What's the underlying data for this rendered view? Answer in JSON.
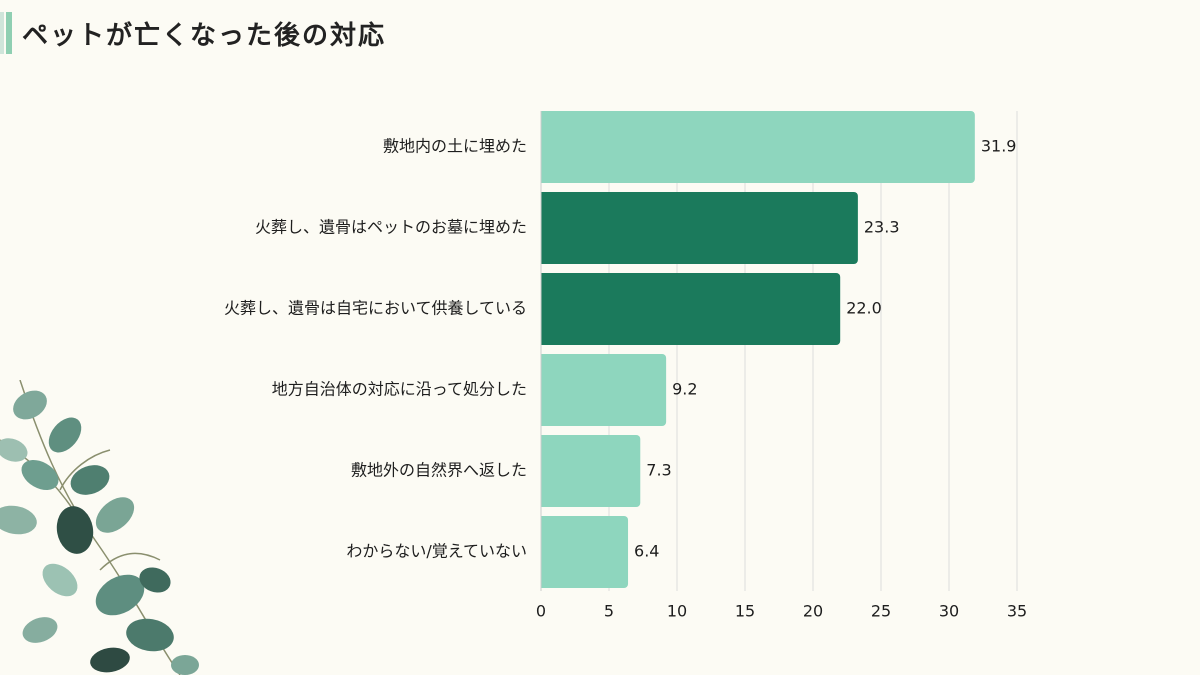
{
  "page": {
    "title": "ペットが亡くなった後の対応"
  },
  "colors": {
    "background": "#FCFBF4",
    "bar_light": "#8ED6BE",
    "bar_dark": "#1B7A5C",
    "grid": "#DDDDDD",
    "accent": "#8FCFB2"
  },
  "chart_data": {
    "type": "bar",
    "orientation": "horizontal",
    "title": "",
    "xlabel": "",
    "ylabel": "",
    "categories": [
      "敷地内の土に埋めた",
      "火葬し、遺骨はペットのお墓に埋めた",
      "火葬し、遺骨は自宅において供養している",
      "地方自治体の対応に沿って処分した",
      "敷地外の自然界へ返した",
      "わからない/覚えていない"
    ],
    "values": [
      31.9,
      23.3,
      22.0,
      9.2,
      7.3,
      6.4
    ],
    "value_labels": [
      "31.9",
      "23.3",
      "22.0",
      "9.2",
      "7.3",
      "6.4"
    ],
    "highlighted": [
      false,
      true,
      true,
      false,
      false,
      false
    ],
    "xlim": [
      0,
      35
    ],
    "xticks": [
      "0",
      "5",
      "10",
      "15",
      "20",
      "25",
      "30",
      "35"
    ],
    "grid": "vertical",
    "legend": "none"
  }
}
